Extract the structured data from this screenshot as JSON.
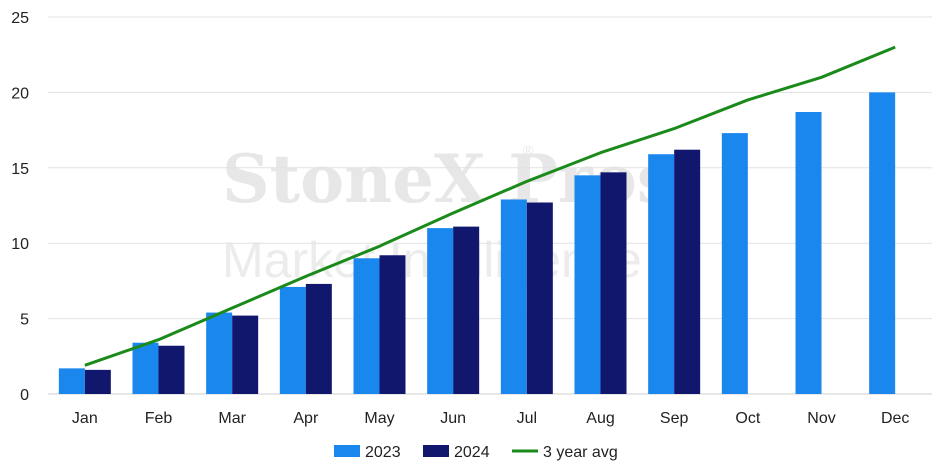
{
  "watermark": {
    "brand": "StoneX Pros",
    "registered": "®",
    "tagline": "Market Intelligence"
  },
  "chart_data": {
    "type": "bar",
    "categories": [
      "Jan",
      "Feb",
      "Mar",
      "Apr",
      "May",
      "Jun",
      "Jul",
      "Aug",
      "Sep",
      "Oct",
      "Nov",
      "Dec"
    ],
    "series": [
      {
        "name": "2023",
        "type": "bar",
        "color": "#1A87EE",
        "values": [
          1.7,
          3.4,
          5.4,
          7.1,
          9.0,
          11.0,
          12.9,
          14.5,
          15.9,
          17.3,
          18.7,
          20.0
        ]
      },
      {
        "name": "2024",
        "type": "bar",
        "color": "#12176E",
        "values": [
          1.6,
          3.2,
          5.2,
          7.3,
          9.2,
          11.1,
          12.7,
          14.7,
          16.2,
          null,
          null,
          null
        ]
      },
      {
        "name": "3 year avg",
        "type": "line",
        "color": "#1A8A1A",
        "values": [
          1.9,
          3.6,
          5.7,
          7.8,
          9.8,
          12.0,
          14.1,
          16.0,
          17.6,
          19.5,
          21.0,
          23.0
        ]
      }
    ],
    "yticks": [
      0,
      5,
      10,
      15,
      20,
      25
    ],
    "ylim": [
      0,
      25
    ],
    "grid": true,
    "legend_position": "bottom-center",
    "title": "",
    "xlabel": "",
    "ylabel": ""
  }
}
